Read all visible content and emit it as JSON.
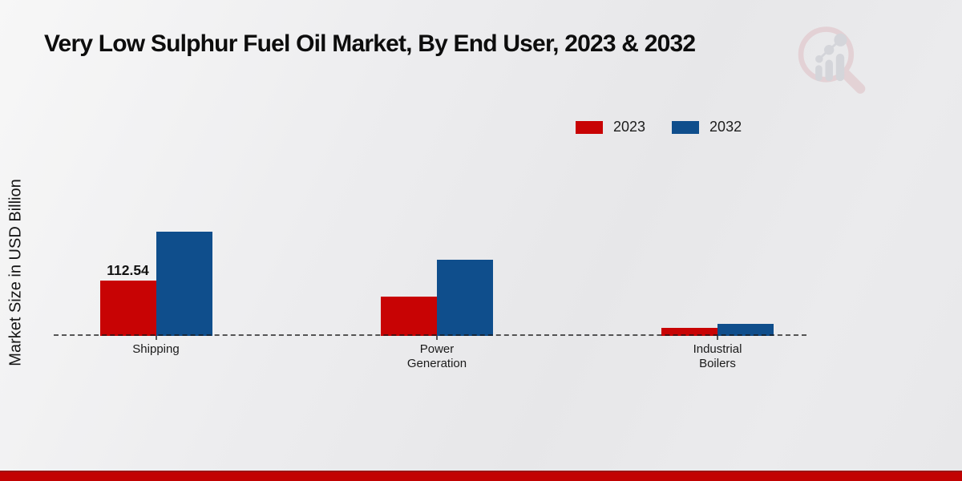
{
  "chart_data": {
    "type": "bar",
    "title": "Very Low Sulphur Fuel Oil Market, By End User, 2023 & 2032",
    "xlabel": "",
    "ylabel": "Market Size in USD Billion",
    "categories": [
      "Shipping",
      "Power Generation",
      "Industrial Boilers"
    ],
    "series": [
      {
        "name": "2023",
        "color": "#c80304",
        "values": [
          112.54,
          80.0,
          17.0
        ]
      },
      {
        "name": "2032",
        "color": "#0f4e8c",
        "values": [
          212.0,
          155.0,
          24.0
        ]
      }
    ],
    "data_labels": [
      {
        "series": "2023",
        "category": "Shipping",
        "text": "112.54"
      }
    ],
    "ylim": [
      0,
      230
    ],
    "grid": false,
    "baseline_style": "dashed",
    "legend_position": "top-right"
  },
  "branding": {
    "watermark_icon": "magnifier-bar-chart-logo",
    "footer_band_color": "#c20202"
  },
  "colors": {
    "series_2023": "#c80304",
    "series_2032": "#0f4e8c",
    "title_text": "#0d0d0d"
  }
}
